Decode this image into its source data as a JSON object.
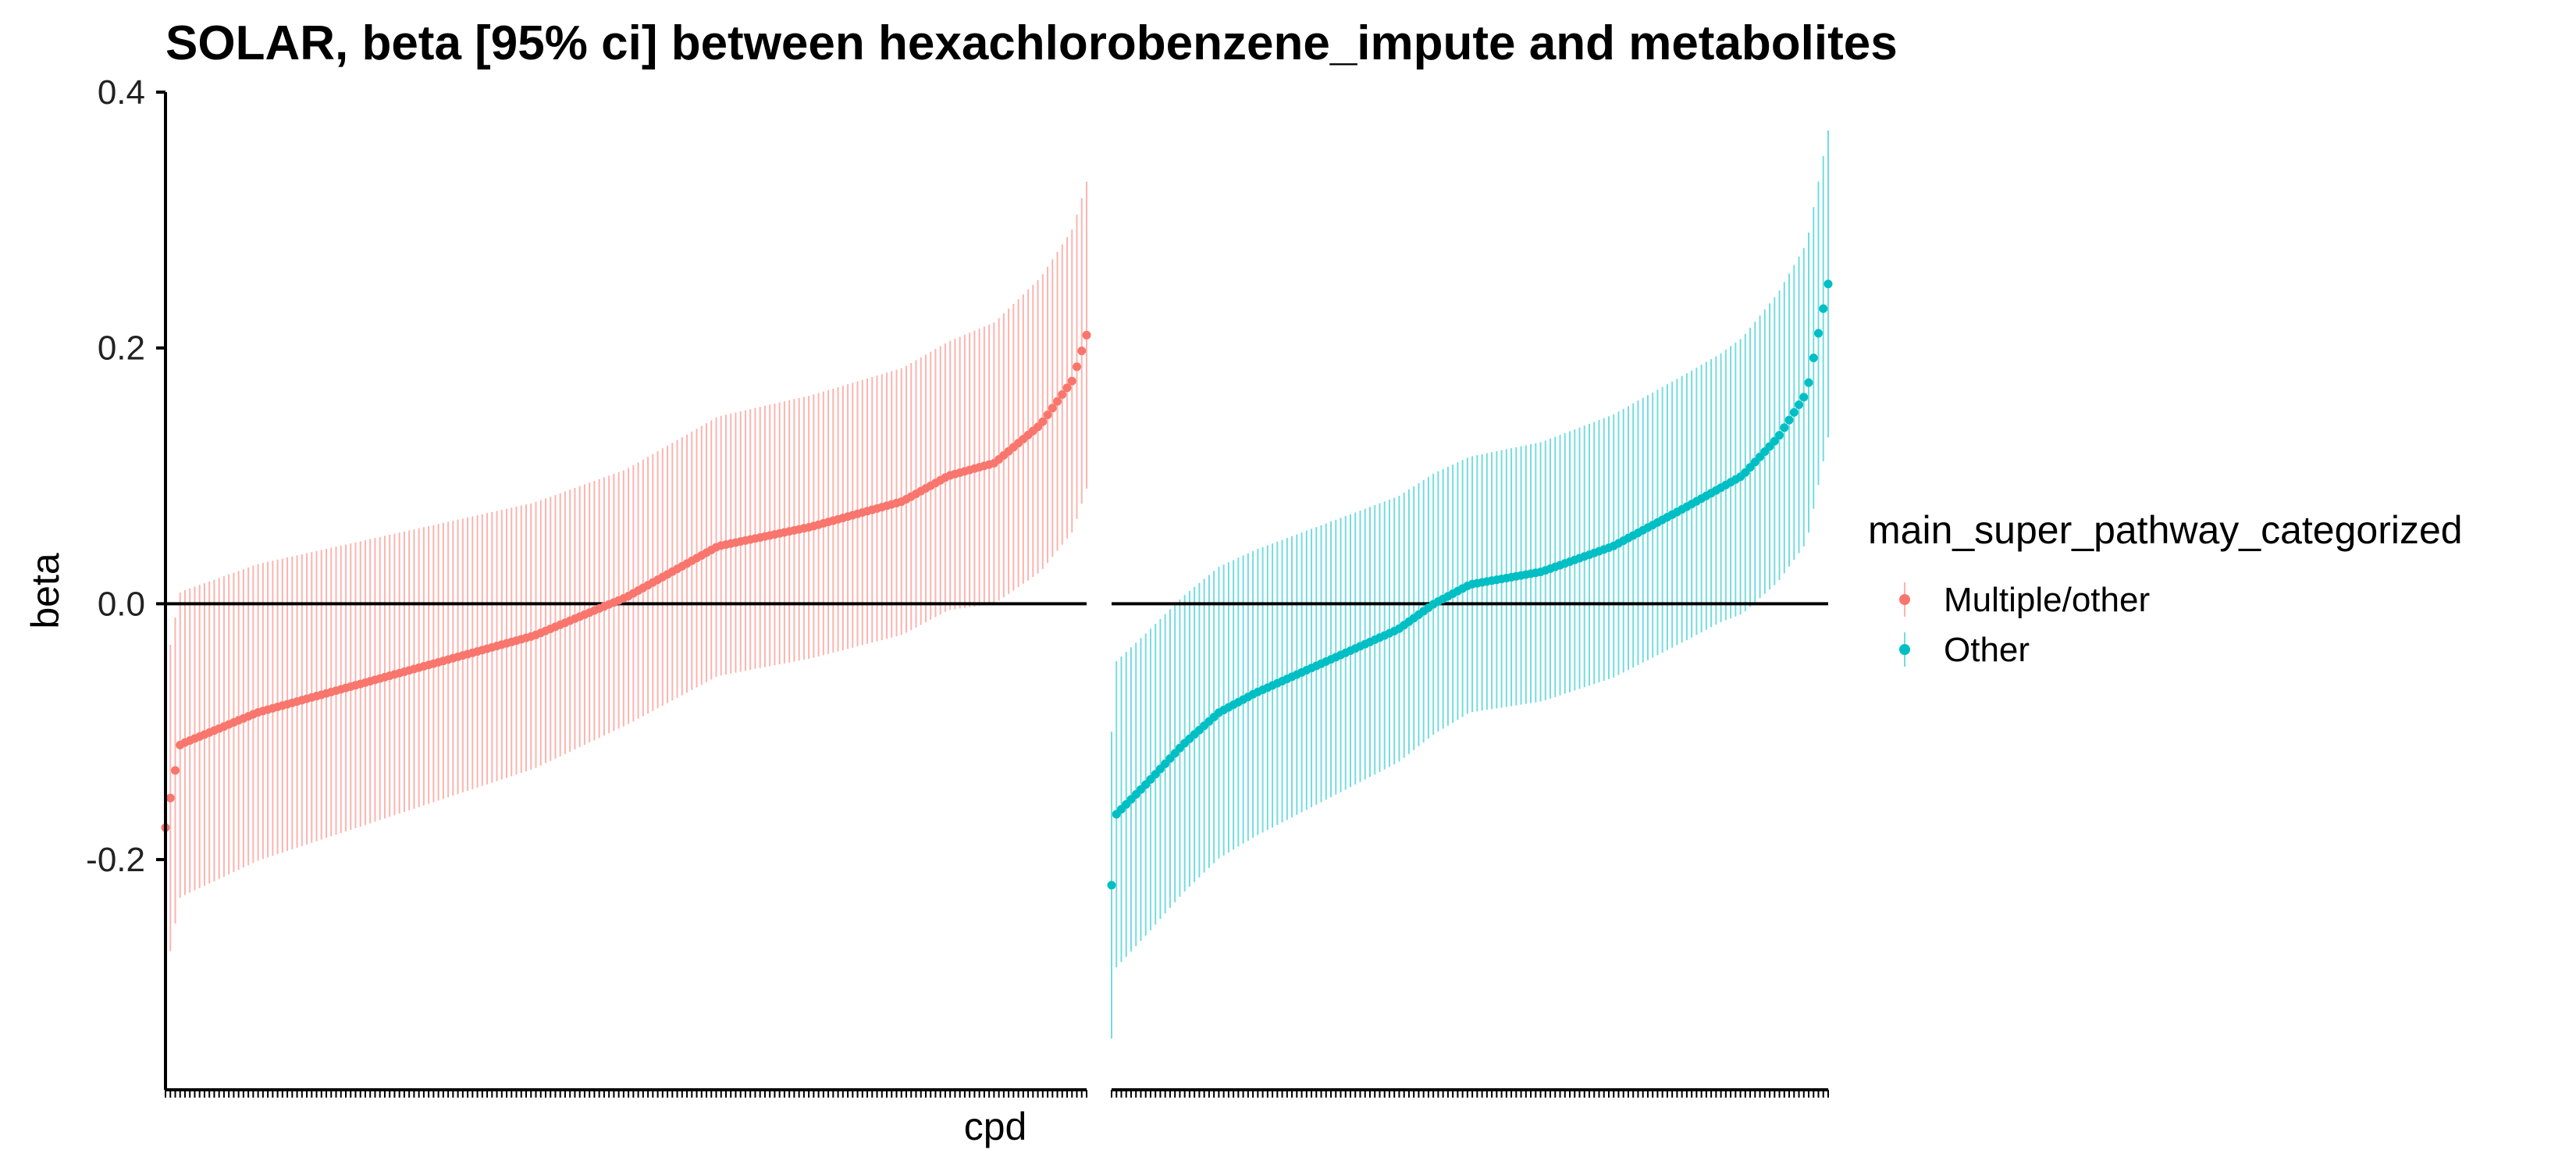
{
  "chart_data": {
    "type": "scatter",
    "title": "SOLAR, beta [95% ci] between hexachlorobenzene_impute and metabolites",
    "xlabel": "cpd",
    "ylabel": "beta",
    "ylim": [
      -0.38,
      0.4
    ],
    "yticks": [
      -0.2,
      0.0,
      0.2,
      0.4
    ],
    "ytick_labels": [
      "-0.2",
      "0.0",
      "0.2",
      "0.4"
    ],
    "reference_line_y": 0.0,
    "legend": {
      "title": "main_super_pathway_categorized",
      "position": "right",
      "entries": [
        {
          "label": "Multiple/other",
          "color": "#F8766D"
        },
        {
          "label": "Other",
          "color": "#00BFC4"
        }
      ]
    },
    "facets": [
      {
        "group": "Multiple/other",
        "color": "#F8766D",
        "n_compounds": 190,
        "beta_knots": [
          [
            0,
            -0.175
          ],
          [
            0.008,
            -0.14
          ],
          [
            0.016,
            -0.11
          ],
          [
            0.05,
            -0.1
          ],
          [
            0.1,
            -0.085
          ],
          [
            0.2,
            -0.065
          ],
          [
            0.3,
            -0.045
          ],
          [
            0.4,
            -0.025
          ],
          [
            0.45,
            -0.01
          ],
          [
            0.5,
            0.005
          ],
          [
            0.55,
            0.025
          ],
          [
            0.6,
            0.045
          ],
          [
            0.7,
            0.06
          ],
          [
            0.8,
            0.08
          ],
          [
            0.85,
            0.1
          ],
          [
            0.9,
            0.11
          ],
          [
            0.95,
            0.14
          ],
          [
            0.985,
            0.175
          ],
          [
            1.0,
            0.21
          ]
        ],
        "ci_halfwidth_knots": [
          [
            0,
            0.12
          ],
          [
            0.5,
            0.1
          ],
          [
            0.85,
            0.105
          ],
          [
            1.0,
            0.12
          ]
        ]
      },
      {
        "group": "Other",
        "color": "#00BFC4",
        "n_compounds": 148,
        "beta_knots": [
          [
            0,
            -0.22
          ],
          [
            0.006,
            -0.165
          ],
          [
            0.05,
            -0.14
          ],
          [
            0.1,
            -0.11
          ],
          [
            0.15,
            -0.085
          ],
          [
            0.2,
            -0.07
          ],
          [
            0.3,
            -0.045
          ],
          [
            0.4,
            -0.02
          ],
          [
            0.45,
            0.0
          ],
          [
            0.5,
            0.015
          ],
          [
            0.6,
            0.025
          ],
          [
            0.7,
            0.045
          ],
          [
            0.8,
            0.075
          ],
          [
            0.88,
            0.1
          ],
          [
            0.93,
            0.13
          ],
          [
            0.97,
            0.165
          ],
          [
            1.0,
            0.25
          ]
        ],
        "ci_halfwidth_knots": [
          [
            0,
            0.12
          ],
          [
            0.5,
            0.1
          ],
          [
            0.85,
            0.105
          ],
          [
            1.0,
            0.12
          ]
        ]
      }
    ]
  }
}
